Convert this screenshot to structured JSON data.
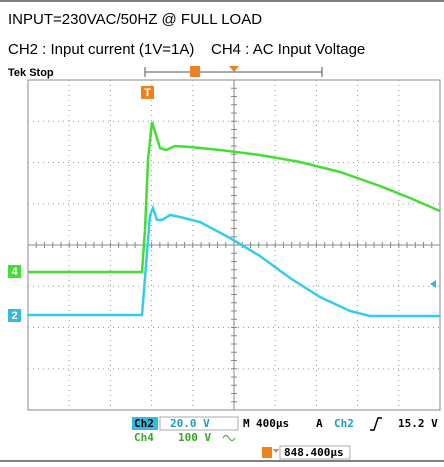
{
  "header": {
    "line1": "INPUT=230VAC/50HZ @ FULL LOAD",
    "line2": "CH2 : Input current (1V=1A)    CH4 : AC Input Voltage"
  },
  "scope": {
    "status": "Tek Stop",
    "trigger_marker": "T",
    "ch4_marker": "4",
    "ch2_marker": "2",
    "readout": {
      "ch2_label": "Ch2",
      "ch2_scale": "20.0 V",
      "time_prefix": "M",
      "timebase": "400µs",
      "trigger_prefix": "A",
      "trigger_source": "Ch2",
      "trigger_level": "15.2 V",
      "ch4_label": "Ch4",
      "ch4_scale": "100 V",
      "trigger_position": "848.400µs"
    }
  }
}
